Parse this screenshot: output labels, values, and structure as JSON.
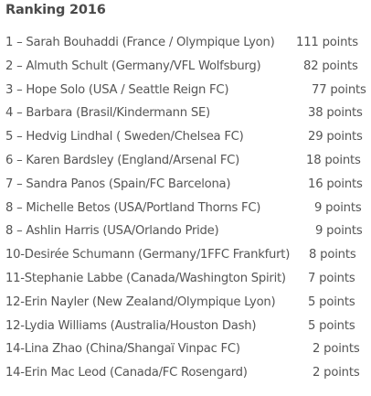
{
  "title": "Ranking 2016",
  "rows": [
    {
      "entry": "1 – Sarah Bouhaddi (France / Olympique Lyon)",
      "points": "111 points"
    },
    {
      "entry": "2 – Almuth Schult (Germany/VFL Wolfsburg)",
      "points": "82 points"
    },
    {
      "entry": "3 – Hope Solo (USA / Seattle Reign FC)",
      "points": "77 points"
    },
    {
      "entry": "4 – Barbara (Brasil/Kindermann SE)",
      "points": "38 points"
    },
    {
      "entry": "5 – Hedvig Lindhal ( Sweden/Chelsea FC)",
      "points": "29 points"
    },
    {
      "entry": "6 – Karen Bardsley (England/Arsenal FC)",
      "points": "18 points"
    },
    {
      "entry": "7 – Sandra Panos (Spain/FC Barcelona)",
      "points": "16 points"
    },
    {
      "entry": "8 – Michelle Betos (USA/Portland Thorns FC)",
      "points": "9 points"
    },
    {
      "entry": "8 – Ashlin Harris (USA/Orlando Pride)",
      "points": "9 points"
    },
    {
      "entry": "10-Desirée Schumann (Germany/1FFC Frankfurt)",
      "points": "8 points"
    },
    {
      "entry": "11-Stephanie Labbe (Canada/Washington Spirit)",
      "points": "7 points"
    },
    {
      "entry": "12-Erin Nayler (New Zealand/Olympique Lyon)",
      "points": "5 points"
    },
    {
      "entry": "12-Lydia Williams (Australia/Houston Dash)",
      "points": "5 points"
    },
    {
      "entry": "14-Lina Zhao (China/Shangaï Vinpac FC)",
      "points": "2 points"
    },
    {
      "entry": "14-Erin Mac Leod (Canada/FC Rosengard)",
      "points": "2 points"
    }
  ]
}
